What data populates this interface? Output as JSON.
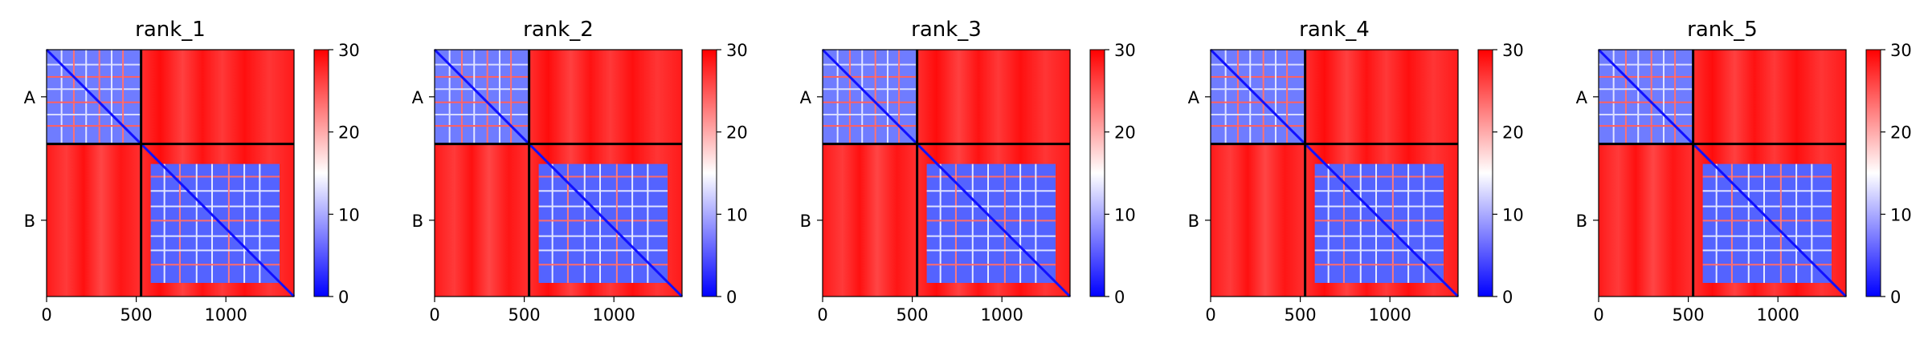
{
  "chart_data": [
    {
      "type": "heatmap",
      "title": "rank_1",
      "x_ticks": [
        0,
        500,
        1000
      ],
      "xlim": [
        0,
        1380
      ],
      "y_tick_labels": [
        "A",
        "B"
      ],
      "chain_boundary": 527,
      "colorbar": {
        "range": [
          0,
          30
        ],
        "ticks": [
          0,
          10,
          20,
          30
        ],
        "colors": [
          "#0000ff",
          "#ffffff",
          "#ff0000"
        ]
      }
    },
    {
      "type": "heatmap",
      "title": "rank_2",
      "x_ticks": [
        0,
        500,
        1000
      ],
      "xlim": [
        0,
        1380
      ],
      "y_tick_labels": [
        "A",
        "B"
      ],
      "chain_boundary": 527,
      "colorbar": {
        "range": [
          0,
          30
        ],
        "ticks": [
          0,
          10,
          20,
          30
        ],
        "colors": [
          "#0000ff",
          "#ffffff",
          "#ff0000"
        ]
      }
    },
    {
      "type": "heatmap",
      "title": "rank_3",
      "x_ticks": [
        0,
        500,
        1000
      ],
      "xlim": [
        0,
        1380
      ],
      "y_tick_labels": [
        "A",
        "B"
      ],
      "chain_boundary": 527,
      "colorbar": {
        "range": [
          0,
          30
        ],
        "ticks": [
          0,
          10,
          20,
          30
        ],
        "colors": [
          "#0000ff",
          "#ffffff",
          "#ff0000"
        ]
      }
    },
    {
      "type": "heatmap",
      "title": "rank_4",
      "x_ticks": [
        0,
        500,
        1000
      ],
      "xlim": [
        0,
        1380
      ],
      "y_tick_labels": [
        "A",
        "B"
      ],
      "chain_boundary": 527,
      "colorbar": {
        "range": [
          0,
          30
        ],
        "ticks": [
          0,
          10,
          20,
          30
        ],
        "colors": [
          "#0000ff",
          "#ffffff",
          "#ff0000"
        ]
      }
    },
    {
      "type": "heatmap",
      "title": "rank_5",
      "x_ticks": [
        0,
        500,
        1000
      ],
      "xlim": [
        0,
        1380
      ],
      "y_tick_labels": [
        "A",
        "B"
      ],
      "chain_boundary": 527,
      "colorbar": {
        "range": [
          0,
          30
        ],
        "ticks": [
          0,
          10,
          20,
          30
        ],
        "colors": [
          "#0000ff",
          "#ffffff",
          "#ff0000"
        ]
      }
    }
  ]
}
